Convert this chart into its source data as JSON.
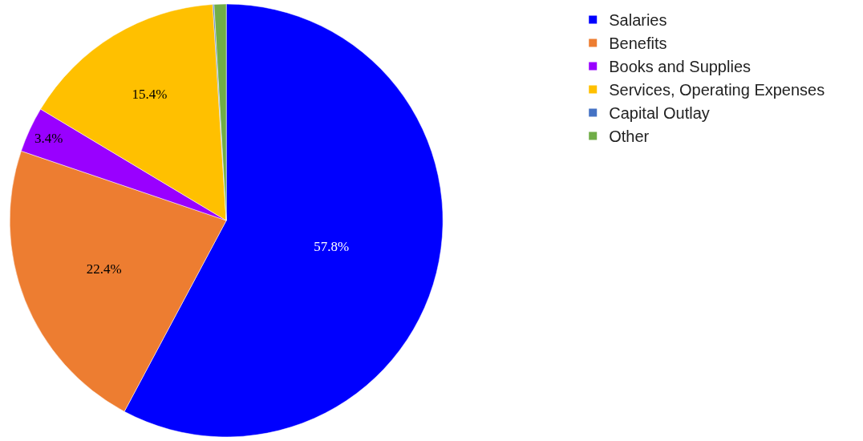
{
  "chart_data": {
    "type": "pie",
    "categories": [
      "Salaries",
      "Benefits",
      "Books and Supplies",
      "Services, Operating Expenses",
      "Capital Outlay",
      "Other"
    ],
    "values": [
      57.8,
      22.4,
      3.4,
      15.4,
      0.1,
      0.9
    ],
    "colors": [
      "#0000ff",
      "#ed7d31",
      "#9900ff",
      "#ffc000",
      "#4472c4",
      "#70ad47"
    ],
    "value_labels": [
      "57.8%",
      "22.4%",
      "3.4%",
      "15.4%",
      null,
      null
    ],
    "legend": "top right"
  }
}
